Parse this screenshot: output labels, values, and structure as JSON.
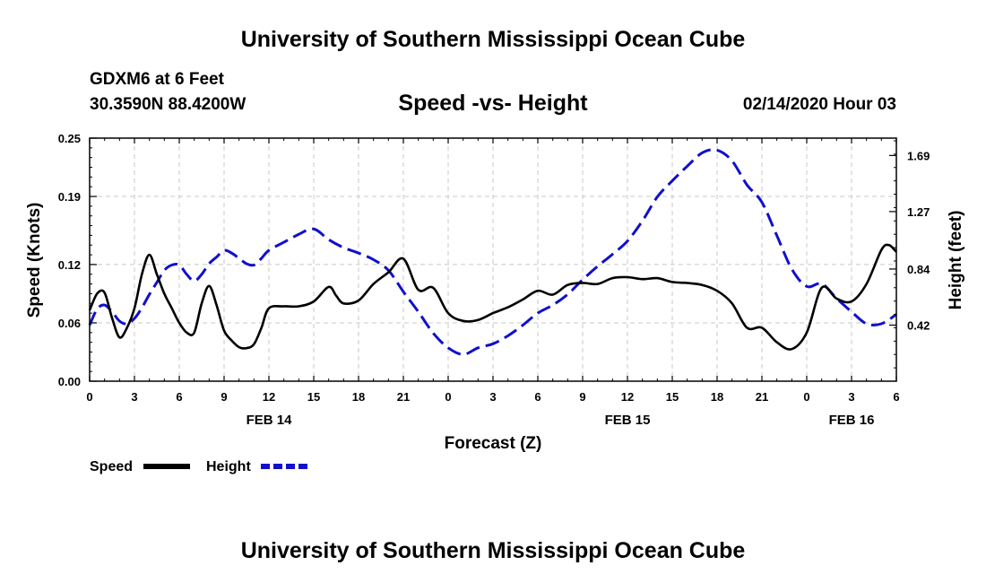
{
  "header": {
    "title": "University of Southern Mississippi Ocean Cube",
    "station": "GDXM6 at 6 Feet",
    "coordinates": "30.3590N 88.4200W",
    "subtitle": "Speed -vs- Height",
    "datetime": "02/14/2020 Hour 03"
  },
  "footer": {
    "title": "University of Southern Mississippi Ocean Cube"
  },
  "colors": {
    "speed": "#000000",
    "height": "#1010cc",
    "grid": "#c8c8c8"
  },
  "chart_data": {
    "type": "line",
    "title": "Speed -vs- Height",
    "xlabel": "Forecast (Z)",
    "ylabel": "Speed (Knots)",
    "y2label": "Height (feet)",
    "x_unit": "hours since FEB 14 00Z",
    "xlim": [
      0,
      54
    ],
    "ylim": [
      0,
      0.25
    ],
    "y2lim": [
      0,
      1.82
    ],
    "grid": true,
    "x_ticks": [
      0,
      3,
      6,
      9,
      12,
      15,
      18,
      21,
      24,
      27,
      30,
      33,
      36,
      39,
      42,
      45,
      48,
      51,
      54
    ],
    "x_tick_labels": [
      "0",
      "3",
      "6",
      "9",
      "12",
      "15",
      "18",
      "21",
      "0",
      "3",
      "6",
      "9",
      "12",
      "15",
      "18",
      "21",
      "0",
      "3",
      "6"
    ],
    "y_ticks": [
      0.0,
      0.06,
      0.12,
      0.19,
      0.25
    ],
    "y_tick_labels": [
      "0.00",
      "0.06",
      "0.12",
      "0.19",
      "0.25"
    ],
    "y2_ticks": [
      0.42,
      0.84,
      1.27,
      1.69
    ],
    "y2_tick_labels": [
      "0.42",
      "0.84",
      "1.27",
      "1.69"
    ],
    "day_labels": [
      {
        "x": 12,
        "label": "FEB 14"
      },
      {
        "x": 36,
        "label": "FEB 15"
      },
      {
        "x": 51,
        "label": "FEB 16"
      }
    ],
    "legend_position": "bottom-left",
    "series": [
      {
        "name": "Speed",
        "axis": "left",
        "style": "solid",
        "x": [
          0,
          0.5,
          1,
          1.5,
          2,
          2.5,
          3,
          3.5,
          4,
          4.5,
          5,
          5.5,
          6,
          6.5,
          7,
          7.5,
          8,
          8.5,
          9,
          9.5,
          10,
          10.5,
          11,
          11.5,
          12,
          13,
          14,
          15,
          16,
          16.5,
          17,
          18,
          19,
          20,
          21,
          22,
          23,
          24,
          25,
          26,
          27,
          28,
          29,
          30,
          31,
          32,
          33,
          34,
          35,
          36,
          37,
          38,
          39,
          40,
          41,
          42,
          43,
          44,
          45,
          46,
          47,
          48,
          49,
          50,
          51,
          52,
          53,
          53.5,
          54
        ],
        "values": [
          0.073,
          0.09,
          0.091,
          0.065,
          0.045,
          0.055,
          0.075,
          0.11,
          0.13,
          0.11,
          0.09,
          0.075,
          0.06,
          0.05,
          0.05,
          0.08,
          0.098,
          0.078,
          0.052,
          0.042,
          0.035,
          0.034,
          0.038,
          0.055,
          0.075,
          0.077,
          0.077,
          0.082,
          0.097,
          0.088,
          0.08,
          0.083,
          0.1,
          0.112,
          0.126,
          0.094,
          0.096,
          0.07,
          0.062,
          0.063,
          0.07,
          0.076,
          0.084,
          0.093,
          0.089,
          0.099,
          0.101,
          0.1,
          0.106,
          0.107,
          0.105,
          0.106,
          0.102,
          0.101,
          0.099,
          0.093,
          0.08,
          0.055,
          0.055,
          0.04,
          0.033,
          0.05,
          0.096,
          0.085,
          0.082,
          0.1,
          0.135,
          0.14,
          0.133
        ]
      },
      {
        "name": "Height",
        "axis": "right",
        "style": "dashed",
        "x": [
          0,
          0.5,
          1,
          1.5,
          2,
          2.5,
          3,
          3.5,
          4,
          4.5,
          5,
          5.5,
          6,
          6.5,
          7,
          7.5,
          8,
          8.5,
          9,
          9.5,
          10,
          10.5,
          11,
          11.5,
          12,
          13,
          14,
          15,
          16,
          17,
          18,
          19,
          20,
          21,
          22,
          23,
          24,
          25,
          26,
          27,
          28,
          29,
          30,
          31,
          32,
          33,
          34,
          35,
          36,
          37,
          38,
          39,
          40,
          41,
          42,
          43,
          44,
          45,
          46,
          47,
          48,
          49,
          50,
          51,
          52,
          53,
          54
        ],
        "values": [
          0.42,
          0.54,
          0.57,
          0.52,
          0.45,
          0.43,
          0.47,
          0.55,
          0.65,
          0.74,
          0.83,
          0.87,
          0.87,
          0.8,
          0.75,
          0.8,
          0.88,
          0.93,
          0.98,
          0.96,
          0.92,
          0.88,
          0.87,
          0.92,
          0.98,
          1.04,
          1.1,
          1.14,
          1.06,
          1.0,
          0.96,
          0.91,
          0.83,
          0.67,
          0.52,
          0.36,
          0.25,
          0.2,
          0.25,
          0.28,
          0.34,
          0.42,
          0.51,
          0.57,
          0.65,
          0.76,
          0.86,
          0.95,
          1.05,
          1.2,
          1.38,
          1.5,
          1.61,
          1.71,
          1.73,
          1.65,
          1.47,
          1.34,
          1.09,
          0.84,
          0.71,
          0.73,
          0.62,
          0.52,
          0.43,
          0.43,
          0.5
        ]
      }
    ]
  }
}
